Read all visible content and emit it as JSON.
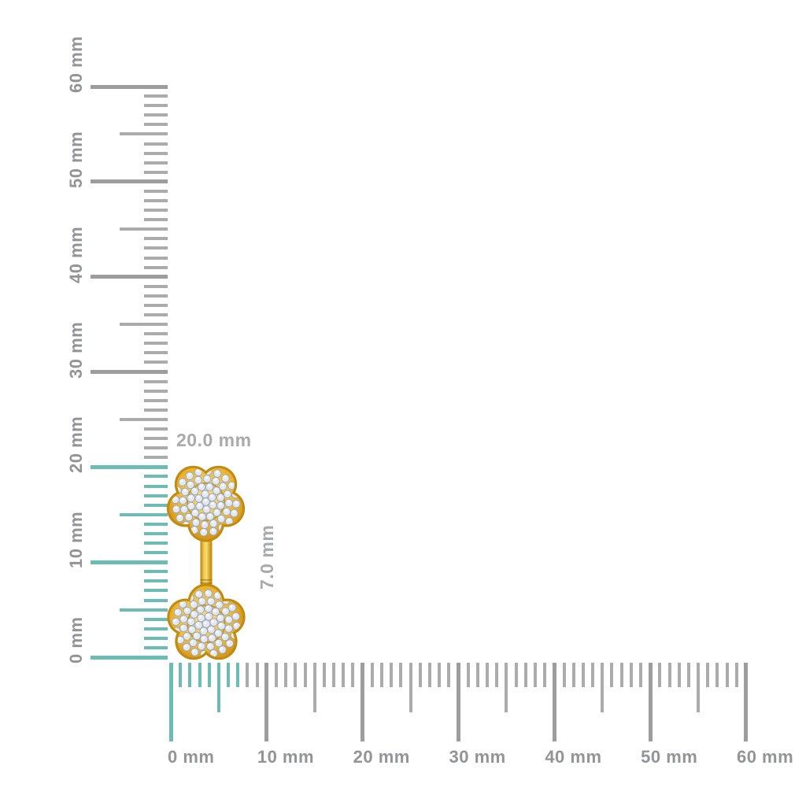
{
  "page": {
    "background_color": "#ffffff"
  },
  "rulers": {
    "unit": "mm",
    "tick_color": "#ababab",
    "major_tick_color": "#9d9d9d",
    "highlight_color": "#6cbcb3",
    "label_color": "#929497",
    "vertical": {
      "min": 0,
      "max": 60,
      "major_step": 10,
      "medium_step": 5,
      "minor_step": 1,
      "highlight_from": 0,
      "highlight_to": 20,
      "labels": [
        "0 mm",
        "10 mm",
        "20 mm",
        "30 mm",
        "40 mm",
        "50 mm",
        "60 mm"
      ]
    },
    "horizontal": {
      "min": 0,
      "max": 60,
      "major_step": 10,
      "medium_step": 5,
      "minor_step": 1,
      "highlight_from": 0,
      "highlight_to": 7,
      "labels": [
        "0 mm",
        "10 mm",
        "20 mm",
        "30 mm",
        "40 mm",
        "50 mm",
        "60 mm"
      ]
    }
  },
  "measurements": {
    "height_label": "20.0 mm",
    "width_label": "7.0 mm",
    "annotation_color": "#a8aaac"
  },
  "product": {
    "description": "Yellow gold earring with two pave diamond flower clusters joined by a vertical gold bar",
    "height_mm": 20.0,
    "width_mm": 7.0,
    "colors": {
      "gold_rim": "#c18b10",
      "gold_light": "#fce180",
      "gold_mid": "#f6cb4b",
      "gold_deep": "#d6971b",
      "gold_ring": "#c9961d",
      "diamond_fill": "#e3e8f1",
      "diamond_edge": "#9aa5b7",
      "diamond_highlight": "#f7f9fd"
    }
  }
}
